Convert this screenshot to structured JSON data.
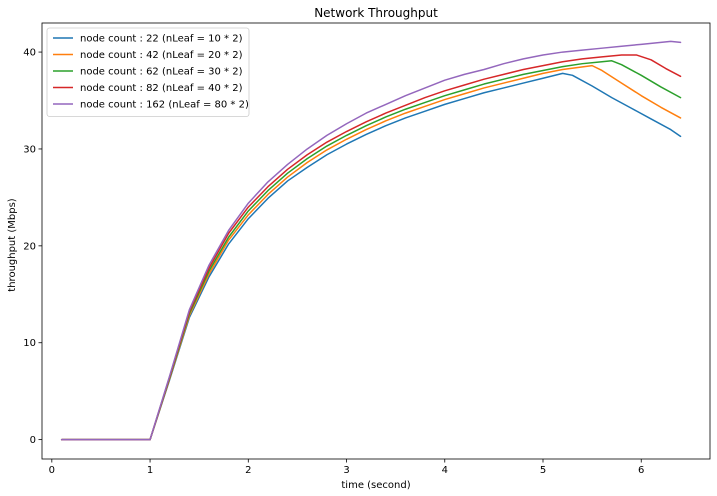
{
  "chart_data": {
    "type": "line",
    "title": "Network Throughput",
    "xlabel": "time (second)",
    "ylabel": "throughput (Mbps)",
    "xlim": [
      -0.1,
      6.7
    ],
    "ylim": [
      -2,
      43
    ],
    "xticks": [
      0,
      1,
      2,
      3,
      4,
      5,
      6
    ],
    "yticks": [
      0,
      10,
      20,
      30,
      40
    ],
    "grid": false,
    "legend": "top-left",
    "series": [
      {
        "name": "node count : 22 (nLeaf = 10 * 2)",
        "color": "#1f77b4",
        "points": [
          [
            0.1,
            0
          ],
          [
            1.0,
            0
          ],
          [
            1.2,
            6.2
          ],
          [
            1.4,
            12.6
          ],
          [
            1.6,
            16.8
          ],
          [
            1.8,
            20.2
          ],
          [
            2.0,
            22.8
          ],
          [
            2.2,
            24.9
          ],
          [
            2.4,
            26.7
          ],
          [
            2.6,
            28.1
          ],
          [
            2.8,
            29.4
          ],
          [
            3.0,
            30.5
          ],
          [
            3.2,
            31.5
          ],
          [
            3.4,
            32.4
          ],
          [
            3.6,
            33.2
          ],
          [
            3.8,
            33.9
          ],
          [
            4.0,
            34.6
          ],
          [
            4.2,
            35.2
          ],
          [
            4.4,
            35.8
          ],
          [
            4.6,
            36.3
          ],
          [
            4.8,
            36.8
          ],
          [
            5.0,
            37.3
          ],
          [
            5.2,
            37.8
          ],
          [
            5.3,
            37.6
          ],
          [
            5.5,
            36.5
          ],
          [
            5.7,
            35.3
          ],
          [
            5.9,
            34.2
          ],
          [
            6.1,
            33.1
          ],
          [
            6.3,
            32.0
          ],
          [
            6.4,
            31.3
          ]
        ]
      },
      {
        "name": "node count : 42 (nLeaf = 20 * 2)",
        "color": "#ff7f0e",
        "points": [
          [
            0.1,
            0
          ],
          [
            1.0,
            0
          ],
          [
            1.2,
            6.3
          ],
          [
            1.4,
            12.8
          ],
          [
            1.6,
            17.1
          ],
          [
            1.8,
            20.6
          ],
          [
            2.0,
            23.2
          ],
          [
            2.2,
            25.3
          ],
          [
            2.4,
            27.1
          ],
          [
            2.6,
            28.6
          ],
          [
            2.8,
            29.9
          ],
          [
            3.0,
            31.0
          ],
          [
            3.2,
            32.0
          ],
          [
            3.4,
            32.9
          ],
          [
            3.6,
            33.7
          ],
          [
            3.8,
            34.4
          ],
          [
            4.0,
            35.1
          ],
          [
            4.2,
            35.7
          ],
          [
            4.4,
            36.3
          ],
          [
            4.6,
            36.8
          ],
          [
            4.8,
            37.3
          ],
          [
            5.0,
            37.8
          ],
          [
            5.2,
            38.2
          ],
          [
            5.5,
            38.6
          ],
          [
            5.6,
            38.1
          ],
          [
            5.8,
            36.8
          ],
          [
            6.0,
            35.5
          ],
          [
            6.2,
            34.3
          ],
          [
            6.4,
            33.2
          ]
        ]
      },
      {
        "name": "node count : 62 (nLeaf = 30 * 2)",
        "color": "#2ca02c",
        "points": [
          [
            0.1,
            0
          ],
          [
            1.0,
            0
          ],
          [
            1.2,
            6.4
          ],
          [
            1.4,
            13.0
          ],
          [
            1.6,
            17.4
          ],
          [
            1.8,
            20.9
          ],
          [
            2.0,
            23.6
          ],
          [
            2.2,
            25.7
          ],
          [
            2.4,
            27.5
          ],
          [
            2.6,
            29.0
          ],
          [
            2.8,
            30.3
          ],
          [
            3.0,
            31.4
          ],
          [
            3.2,
            32.4
          ],
          [
            3.4,
            33.3
          ],
          [
            3.6,
            34.1
          ],
          [
            3.8,
            34.8
          ],
          [
            4.0,
            35.5
          ],
          [
            4.2,
            36.1
          ],
          [
            4.4,
            36.7
          ],
          [
            4.6,
            37.2
          ],
          [
            4.8,
            37.7
          ],
          [
            5.0,
            38.1
          ],
          [
            5.2,
            38.5
          ],
          [
            5.4,
            38.8
          ],
          [
            5.6,
            39.0
          ],
          [
            5.7,
            39.1
          ],
          [
            5.8,
            38.7
          ],
          [
            6.0,
            37.6
          ],
          [
            6.2,
            36.4
          ],
          [
            6.4,
            35.3
          ]
        ]
      },
      {
        "name": "node count : 82 (nLeaf = 40 * 2)",
        "color": "#d62728",
        "points": [
          [
            0.1,
            0
          ],
          [
            1.0,
            0
          ],
          [
            1.2,
            6.5
          ],
          [
            1.4,
            13.2
          ],
          [
            1.6,
            17.7
          ],
          [
            1.8,
            21.3
          ],
          [
            2.0,
            24.0
          ],
          [
            2.2,
            26.1
          ],
          [
            2.4,
            27.9
          ],
          [
            2.6,
            29.4
          ],
          [
            2.8,
            30.7
          ],
          [
            3.0,
            31.8
          ],
          [
            3.2,
            32.8
          ],
          [
            3.4,
            33.7
          ],
          [
            3.6,
            34.5
          ],
          [
            3.8,
            35.3
          ],
          [
            4.0,
            36.0
          ],
          [
            4.2,
            36.6
          ],
          [
            4.4,
            37.2
          ],
          [
            4.6,
            37.7
          ],
          [
            4.8,
            38.2
          ],
          [
            5.0,
            38.6
          ],
          [
            5.2,
            39.0
          ],
          [
            5.4,
            39.3
          ],
          [
            5.6,
            39.5
          ],
          [
            5.8,
            39.7
          ],
          [
            5.95,
            39.7
          ],
          [
            6.1,
            39.2
          ],
          [
            6.25,
            38.3
          ],
          [
            6.4,
            37.5
          ]
        ]
      },
      {
        "name": "node count : 162 (nLeaf = 80 * 2)",
        "color": "#9467bd",
        "points": [
          [
            0.1,
            0
          ],
          [
            1.0,
            0
          ],
          [
            1.2,
            6.6
          ],
          [
            1.4,
            13.4
          ],
          [
            1.6,
            18.0
          ],
          [
            1.8,
            21.6
          ],
          [
            2.0,
            24.4
          ],
          [
            2.2,
            26.6
          ],
          [
            2.4,
            28.4
          ],
          [
            2.6,
            30.0
          ],
          [
            2.8,
            31.4
          ],
          [
            3.0,
            32.6
          ],
          [
            3.2,
            33.7
          ],
          [
            3.4,
            34.6
          ],
          [
            3.6,
            35.5
          ],
          [
            3.8,
            36.3
          ],
          [
            4.0,
            37.1
          ],
          [
            4.2,
            37.7
          ],
          [
            4.4,
            38.2
          ],
          [
            4.6,
            38.8
          ],
          [
            4.8,
            39.3
          ],
          [
            5.0,
            39.7
          ],
          [
            5.2,
            40.0
          ],
          [
            5.4,
            40.2
          ],
          [
            5.6,
            40.4
          ],
          [
            5.8,
            40.6
          ],
          [
            6.0,
            40.8
          ],
          [
            6.2,
            41.0
          ],
          [
            6.3,
            41.1
          ],
          [
            6.4,
            41.0
          ]
        ]
      }
    ]
  }
}
